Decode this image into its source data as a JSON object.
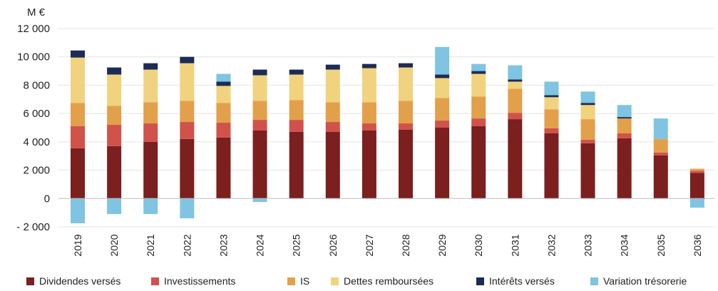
{
  "chart_data": {
    "type": "bar",
    "stacked": true,
    "unit_label": "M €",
    "categories": [
      "2019",
      "2020",
      "2021",
      "2022",
      "2023",
      "2024",
      "2025",
      "2026",
      "2027",
      "2028",
      "2029",
      "2030",
      "2031",
      "2032",
      "2033",
      "2034",
      "2035",
      "2036"
    ],
    "ylim": [
      -2000,
      12000
    ],
    "yticks": [
      -2000,
      0,
      2000,
      4000,
      6000,
      8000,
      10000,
      12000
    ],
    "ytick_labels": [
      "- 2 000",
      "0",
      "2 000",
      "4 000",
      "6 000",
      "8 000",
      "10 000",
      "12 000"
    ],
    "grid": true,
    "legend_position": "bottom",
    "series": [
      {
        "name": "Dividendes versés",
        "color": "#7b1f1f",
        "values": [
          3550,
          3700,
          4000,
          4200,
          4300,
          4800,
          4700,
          4700,
          4800,
          4850,
          5000,
          5100,
          5600,
          4600,
          3900,
          4250,
          3050,
          1800
        ]
      },
      {
        "name": "Investissements",
        "color": "#d0524b",
        "values": [
          1550,
          1500,
          1300,
          1200,
          1050,
          750,
          850,
          700,
          500,
          450,
          500,
          550,
          450,
          350,
          250,
          350,
          200,
          150
        ]
      },
      {
        "name": "IS",
        "color": "#e3a04a",
        "values": [
          1650,
          1350,
          1500,
          1500,
          1400,
          1350,
          1400,
          1400,
          1500,
          1600,
          1600,
          1550,
          1700,
          1350,
          1450,
          1050,
          950,
          150
        ]
      },
      {
        "name": "Dettes remboursées",
        "color": "#f1d27e",
        "values": [
          3200,
          2200,
          2300,
          2650,
          1200,
          1800,
          1800,
          2300,
          2400,
          2350,
          1400,
          1600,
          500,
          850,
          1000,
          0,
          0,
          0
        ]
      },
      {
        "name": "Intérêts versés",
        "color": "#1d2c55",
        "values": [
          500,
          500,
          450,
          450,
          300,
          400,
          350,
          350,
          300,
          300,
          250,
          200,
          150,
          150,
          150,
          100,
          0,
          0
        ]
      },
      {
        "name": "Variation trésorerie",
        "color": "#7fc4e2",
        "values": [
          -1750,
          -1100,
          -1100,
          -1400,
          550,
          -250,
          0,
          0,
          0,
          0,
          1950,
          500,
          1000,
          950,
          800,
          850,
          1450,
          -650
        ]
      }
    ]
  }
}
